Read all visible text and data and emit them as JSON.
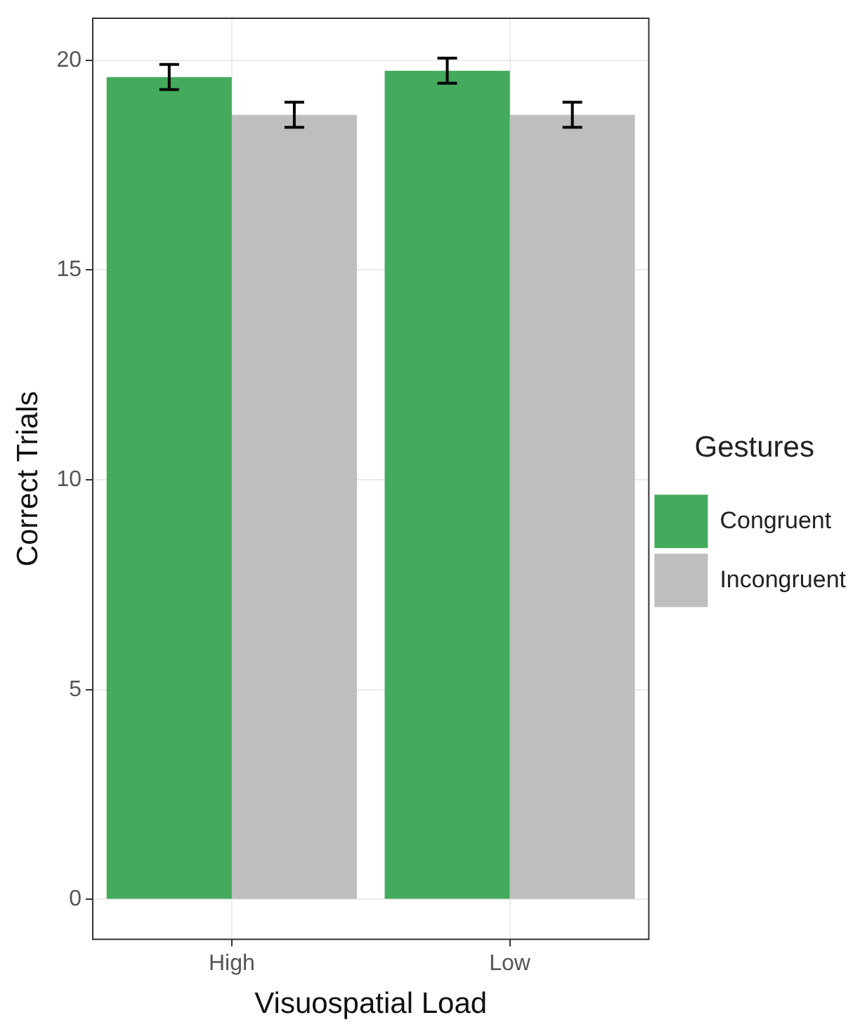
{
  "chart_data": {
    "type": "bar",
    "xlabel": "Visuospatial Load",
    "ylabel": "Correct Trials",
    "legend_title": "Gestures",
    "categories": [
      "High",
      "Low"
    ],
    "series": [
      {
        "name": "Congruent",
        "color": "#44aa5c",
        "values": [
          19.6,
          19.75
        ],
        "errors": [
          0.3,
          0.3
        ]
      },
      {
        "name": "Incongruent",
        "color": "#bebebe",
        "values": [
          18.7,
          18.7
        ],
        "errors": [
          0.3,
          0.3
        ]
      }
    ],
    "ylim": [
      -0.95,
      21
    ],
    "yticks": [
      0,
      5,
      10,
      15,
      20
    ],
    "grid": true,
    "legend": "right"
  }
}
